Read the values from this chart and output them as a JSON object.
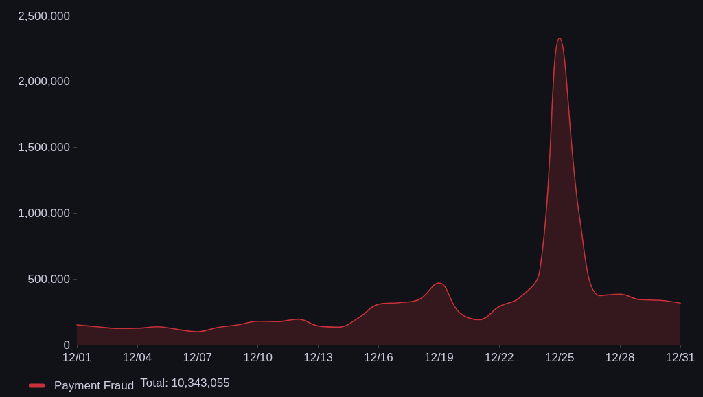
{
  "chart_data": {
    "type": "area",
    "x": [
      "--12-01",
      "--12-02",
      "--12-03",
      "--12-04",
      "--12-05",
      "--12-06",
      "--12-07",
      "--12-08",
      "--12-09",
      "--12-10",
      "--12-11",
      "--12-12",
      "--12-13",
      "--12-14",
      "--12-15",
      "--12-16",
      "--12-17",
      "--12-18",
      "--12-19",
      "--12-20",
      "--12-21",
      "--12-22",
      "--12-23",
      "--12-24",
      "--12-25",
      "--12-26",
      "--12-27",
      "--12-28",
      "--12-29",
      "--12-30",
      "--12-31"
    ],
    "series": [
      {
        "name": "Payment Fraud",
        "color": "#c8303a",
        "values": [
          151000,
          137000,
          124000,
          125000,
          137000,
          117000,
          99000,
          132000,
          151000,
          179000,
          177000,
          195000,
          143000,
          134000,
          204000,
          308000,
          320000,
          343000,
          470000,
          247000,
          191000,
          291000,
          357000,
          555000,
          2330000,
          960000,
          374000,
          385000,
          343000,
          338000,
          317000
        ]
      }
    ],
    "xlim": [
      "--12-01",
      "--12-31"
    ],
    "xticks": [
      {
        "value": "--12-01",
        "label": "12/01"
      },
      {
        "value": "--12-04",
        "label": "12/04"
      },
      {
        "value": "--12-07",
        "label": "12/07"
      },
      {
        "value": "--12-10",
        "label": "12/10"
      },
      {
        "value": "--12-13",
        "label": "12/13"
      },
      {
        "value": "--12-16",
        "label": "12/16"
      },
      {
        "value": "--12-19",
        "label": "12/19"
      },
      {
        "value": "--12-22",
        "label": "12/22"
      },
      {
        "value": "--12-25",
        "label": "12/25"
      },
      {
        "value": "--12-28",
        "label": "12/28"
      },
      {
        "value": "--12-31",
        "label": "12/31"
      }
    ],
    "ylim": [
      0,
      2500000
    ],
    "yticks": [
      0,
      {
        "value": 500000,
        "label": "500,000"
      },
      {
        "value": 1000000,
        "label": "1,000,000"
      },
      {
        "value": 1500000,
        "label": "1,500,000"
      },
      {
        "value": 2000000,
        "label": "2,000,000"
      },
      {
        "value": 2500000,
        "label": "2,500,000"
      }
    ],
    "legend": "bottom left",
    "annotations": [
      "Total: 10,343,055"
    ]
  }
}
